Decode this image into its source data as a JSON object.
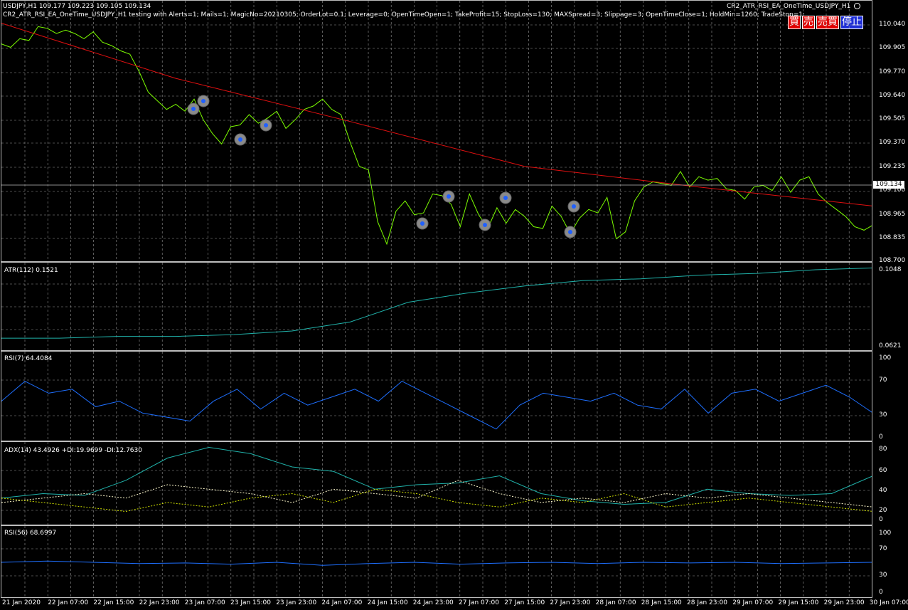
{
  "header": {
    "symbol_line": "USDJPY,H1  109.177 109.223 109.105 109.134",
    "ea_params": "CR2_ATR_RSI_EA_OneTime_USDJPY_H1 testing with Alerts=1; Mails=1; MagicNo=20210305; OrderLot=0.1; Leverage=0; OpenTimeOpen=1; TakeProfit=15; StopLoss=130; MAXSpread=3; Slippage=3; OpenTimeClose=1; HoldMin=1260; TradeStop=1;",
    "ea_name": "CR2_ATR_RSI_EA_OneTime_USDJPY_H1"
  },
  "buttons": [
    {
      "label": "買",
      "bg": "#e00000"
    },
    {
      "label": "売",
      "bg": "#e00000"
    },
    {
      "label": "売買",
      "bg": "#e00000"
    },
    {
      "label": "停止",
      "bg": "#1f2fd6"
    }
  ],
  "current_price": "109.134",
  "panels": {
    "price": {
      "ticks": [
        "110.040",
        "109.905",
        "109.770",
        "109.640",
        "109.505",
        "109.370",
        "109.235",
        "109.100",
        "108.965",
        "108.835",
        "108.700"
      ]
    },
    "atr": {
      "label": "ATR(112) 0.1521",
      "ticks": [
        "0.1048",
        "0.0621"
      ]
    },
    "rsi7": {
      "label": "RSI(7) 64.4084",
      "ticks": [
        "100",
        "70",
        "30",
        "0"
      ]
    },
    "adx": {
      "label": "ADX(14) 43.4926 +DI:19.9699 -DI:12.7630",
      "ticks": [
        "80",
        "60",
        "40",
        "20",
        "0"
      ]
    },
    "rsi56": {
      "label": "RSI(56) 68.6997",
      "ticks": [
        "100",
        "70",
        "30",
        "0"
      ]
    }
  },
  "x_labels": [
    "21 Jan 2020",
    "22 Jan 07:00",
    "22 Jan 15:00",
    "22 Jan 23:00",
    "23 Jan 07:00",
    "23 Jan 15:00",
    "23 Jan 23:00",
    "24 Jan 07:00",
    "24 Jan 15:00",
    "24 Jan 23:00",
    "27 Jan 07:00",
    "27 Jan 15:00",
    "27 Jan 23:00",
    "28 Jan 07:00",
    "28 Jan 15:00",
    "28 Jan 23:00",
    "29 Jan 07:00",
    "29 Jan 15:00",
    "29 Jan 23:00",
    "30 Jan 07:00"
  ],
  "colors": {
    "price_line": "#7cfc00",
    "ma_line": "#e01010",
    "atr_line": "#20b2aa",
    "rsi_line": "#1e6fff",
    "adx_line": "#20b2aa",
    "plus_di": "#fffacd",
    "minus_di": "#d0e000",
    "grid": "#9a9a9a"
  },
  "chart_data": [
    {
      "type": "line",
      "title": "USDJPY,H1",
      "series": [
        {
          "name": "Close",
          "values": [
            109.96,
            109.94,
            109.99,
            109.98,
            110.06,
            110.05,
            110.02,
            110.04,
            110.02,
            109.99,
            110.03,
            109.97,
            109.95,
            109.92,
            109.9,
            109.8,
            109.68,
            109.63,
            109.58,
            109.61,
            109.57,
            109.64,
            109.52,
            109.44,
            109.38,
            109.48,
            109.49,
            109.55,
            109.5,
            109.53,
            109.57,
            109.47,
            109.52,
            109.58,
            109.6,
            109.64,
            109.58,
            109.55,
            109.39,
            109.25,
            109.23,
            108.93,
            108.8,
            108.99,
            109.05,
            108.97,
            108.98,
            109.09,
            109.08,
            109.03,
            108.9,
            109.09,
            108.97,
            108.89,
            109.01,
            108.92,
            109.0,
            108.96,
            108.9,
            108.89,
            109.02,
            108.96,
            108.86,
            108.95,
            109.0,
            108.98,
            109.07,
            108.83,
            108.87,
            109.05,
            109.13,
            109.16,
            109.15,
            109.14,
            109.22,
            109.13,
            109.19,
            109.17,
            109.18,
            109.12,
            109.11,
            109.06,
            109.13,
            109.14,
            109.11,
            109.19,
            109.1,
            109.17,
            109.19,
            109.09,
            109.04,
            109.0,
            108.96,
            108.9,
            108.88,
            108.91
          ]
        },
        {
          "name": "MA",
          "values": [
            110.08,
            109.76,
            109.51,
            109.25,
            109.13,
            109.02
          ]
        }
      ]
    },
    {
      "type": "line",
      "title": "ATR(112)",
      "ylim": [
        0.0621,
        0.1048
      ],
      "series": [
        {
          "name": "ATR",
          "values": [
            0.066,
            0.066,
            0.067,
            0.067,
            0.068,
            0.07,
            0.075,
            0.086,
            0.091,
            0.095,
            0.098,
            0.099,
            0.101,
            0.102,
            0.104,
            0.105
          ]
        }
      ]
    },
    {
      "type": "line",
      "title": "RSI(7)",
      "ylim": [
        0,
        100
      ],
      "series": [
        {
          "name": "RSI7",
          "values": [
            45,
            70,
            55,
            60,
            38,
            45,
            30,
            25,
            20,
            45,
            60,
            35,
            55,
            40,
            50,
            60,
            45,
            70,
            55,
            40,
            25,
            10,
            40,
            55,
            50,
            45,
            55,
            40,
            35,
            60,
            30,
            55,
            60,
            45,
            55,
            65,
            50,
            30
          ]
        }
      ]
    },
    {
      "type": "line",
      "title": "ADX(14)",
      "ylim": [
        0,
        80
      ],
      "series": [
        {
          "name": "ADX",
          "values": [
            25,
            30,
            28,
            45,
            70,
            82,
            75,
            60,
            55,
            35,
            40,
            42,
            50,
            30,
            22,
            18,
            20,
            35,
            30,
            28,
            30,
            50
          ]
        },
        {
          "name": "+DI",
          "values": [
            20,
            25,
            30,
            25,
            40,
            35,
            30,
            20,
            35,
            30,
            25,
            45,
            30,
            20,
            25,
            20,
            30,
            25,
            30,
            25,
            20,
            15
          ]
        },
        {
          "name": "-DI",
          "values": [
            25,
            20,
            15,
            10,
            20,
            15,
            25,
            30,
            20,
            35,
            30,
            20,
            15,
            25,
            20,
            30,
            15,
            20,
            25,
            20,
            15,
            10
          ]
        }
      ]
    },
    {
      "type": "line",
      "title": "RSI(56)",
      "ylim": [
        0,
        100
      ],
      "series": [
        {
          "name": "RSI56",
          "values": [
            50,
            52,
            50,
            48,
            49,
            47,
            50,
            45,
            48,
            50,
            47,
            49,
            50,
            48,
            50,
            49,
            50,
            48,
            49,
            50
          ]
        }
      ]
    }
  ]
}
